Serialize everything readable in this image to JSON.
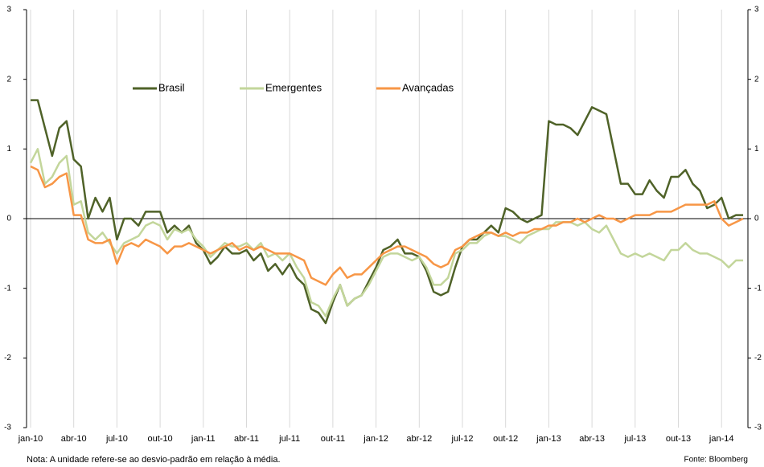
{
  "chart_data": {
    "type": "line",
    "categories": [
      "jan-10",
      null,
      null,
      null,
      null,
      null,
      "abr-10",
      null,
      null,
      null,
      null,
      null,
      "jul-10",
      null,
      null,
      null,
      null,
      null,
      "out-10",
      null,
      null,
      null,
      null,
      null,
      "jan-11",
      null,
      null,
      null,
      null,
      null,
      "abr-11",
      null,
      null,
      null,
      null,
      null,
      "jul-11",
      null,
      null,
      null,
      null,
      null,
      "out-11",
      null,
      null,
      null,
      null,
      null,
      "jan-12",
      null,
      null,
      null,
      null,
      null,
      "abr-12",
      null,
      null,
      null,
      null,
      null,
      "jul-12",
      null,
      null,
      null,
      null,
      null,
      "out-12",
      null,
      null,
      null,
      null,
      null,
      "jan-13",
      null,
      null,
      null,
      null,
      null,
      "abr-13",
      null,
      null,
      null,
      null,
      null,
      "jul-13",
      null,
      null,
      null,
      null,
      null,
      "out-13",
      null,
      null,
      null,
      null,
      null,
      "jan-14",
      null,
      null,
      null
    ],
    "series": [
      {
        "name": "Brasil",
        "color": "#4f6228",
        "values": [
          1.7,
          1.7,
          1.3,
          0.9,
          1.3,
          1.4,
          0.85,
          0.75,
          0.0,
          0.3,
          0.1,
          0.3,
          -0.3,
          0.0,
          0.0,
          -0.1,
          0.1,
          0.1,
          0.1,
          -0.2,
          -0.1,
          -0.2,
          -0.1,
          -0.35,
          -0.45,
          -0.65,
          -0.55,
          -0.4,
          -0.5,
          -0.5,
          -0.45,
          -0.6,
          -0.5,
          -0.75,
          -0.65,
          -0.8,
          -0.65,
          -0.85,
          -0.95,
          -1.3,
          -1.35,
          -1.5,
          -1.2,
          -0.95,
          -1.25,
          -1.15,
          -1.1,
          -0.9,
          -0.7,
          -0.45,
          -0.4,
          -0.3,
          -0.5,
          -0.5,
          -0.55,
          -0.75,
          -1.05,
          -1.1,
          -1.05,
          -0.7,
          -0.4,
          -0.3,
          -0.3,
          -0.2,
          -0.1,
          -0.2,
          0.15,
          0.1,
          0.0,
          -0.05,
          0.0,
          0.05,
          1.4,
          1.35,
          1.35,
          1.3,
          1.2,
          1.4,
          1.6,
          1.55,
          1.5,
          1.0,
          0.5,
          0.5,
          0.35,
          0.35,
          0.55,
          0.4,
          0.3,
          0.6,
          0.6,
          0.7,
          0.5,
          0.4,
          0.15,
          0.2,
          0.3,
          0.0,
          0.05,
          0.05
        ]
      },
      {
        "name": "Emergentes",
        "color": "#c3d69b",
        "values": [
          0.8,
          1.0,
          0.5,
          0.6,
          0.8,
          0.9,
          0.2,
          0.25,
          -0.2,
          -0.3,
          -0.2,
          -0.35,
          -0.5,
          -0.35,
          -0.3,
          -0.25,
          -0.1,
          -0.05,
          -0.1,
          -0.3,
          -0.15,
          -0.2,
          -0.15,
          -0.3,
          -0.4,
          -0.55,
          -0.45,
          -0.35,
          -0.4,
          -0.4,
          -0.35,
          -0.45,
          -0.35,
          -0.55,
          -0.5,
          -0.6,
          -0.5,
          -0.7,
          -0.85,
          -1.2,
          -1.25,
          -1.4,
          -1.15,
          -0.95,
          -1.25,
          -1.15,
          -1.1,
          -0.95,
          -0.75,
          -0.55,
          -0.5,
          -0.5,
          -0.55,
          -0.6,
          -0.55,
          -0.7,
          -0.95,
          -0.95,
          -0.85,
          -0.5,
          -0.45,
          -0.35,
          -0.35,
          -0.25,
          -0.2,
          -0.25,
          -0.25,
          -0.3,
          -0.35,
          -0.25,
          -0.2,
          -0.15,
          -0.15,
          -0.05,
          -0.05,
          -0.05,
          -0.1,
          -0.05,
          -0.15,
          -0.2,
          -0.1,
          -0.3,
          -0.5,
          -0.55,
          -0.5,
          -0.55,
          -0.5,
          -0.55,
          -0.6,
          -0.45,
          -0.45,
          -0.35,
          -0.45,
          -0.5,
          -0.5,
          -0.55,
          -0.6,
          -0.7,
          -0.6,
          -0.6
        ]
      },
      {
        "name": "Avançadas",
        "color": "#f79646",
        "values": [
          0.75,
          0.7,
          0.45,
          0.5,
          0.6,
          0.65,
          0.05,
          0.05,
          -0.3,
          -0.35,
          -0.35,
          -0.3,
          -0.65,
          -0.4,
          -0.35,
          -0.4,
          -0.3,
          -0.35,
          -0.4,
          -0.5,
          -0.4,
          -0.4,
          -0.35,
          -0.4,
          -0.45,
          -0.5,
          -0.45,
          -0.4,
          -0.35,
          -0.45,
          -0.4,
          -0.45,
          -0.4,
          -0.45,
          -0.5,
          -0.5,
          -0.5,
          -0.55,
          -0.6,
          -0.85,
          -0.9,
          -0.95,
          -0.8,
          -0.7,
          -0.85,
          -0.8,
          -0.8,
          -0.7,
          -0.6,
          -0.5,
          -0.45,
          -0.4,
          -0.4,
          -0.45,
          -0.5,
          -0.55,
          -0.65,
          -0.7,
          -0.65,
          -0.45,
          -0.4,
          -0.3,
          -0.25,
          -0.2,
          -0.2,
          -0.25,
          -0.2,
          -0.25,
          -0.2,
          -0.2,
          -0.15,
          -0.15,
          -0.1,
          -0.1,
          -0.05,
          -0.05,
          0.0,
          -0.05,
          0.0,
          0.05,
          0.0,
          0.0,
          -0.05,
          0.0,
          0.05,
          0.05,
          0.05,
          0.1,
          0.1,
          0.1,
          0.15,
          0.2,
          0.2,
          0.2,
          0.2,
          0.25,
          0.0,
          -0.1,
          -0.05,
          0.0
        ]
      }
    ],
    "ylim": [
      -3,
      3
    ],
    "yticks": [
      -3,
      -2,
      -1,
      0,
      1,
      2,
      3
    ],
    "y2lim": [
      -3,
      3
    ],
    "y2ticks": [
      -3,
      -2,
      -1,
      0,
      1,
      2,
      3
    ],
    "grid": true,
    "note": "Nota:  A unidade refere-se ao desvio-padrão em relação à média.",
    "source": "Fonte: Bloomberg"
  }
}
